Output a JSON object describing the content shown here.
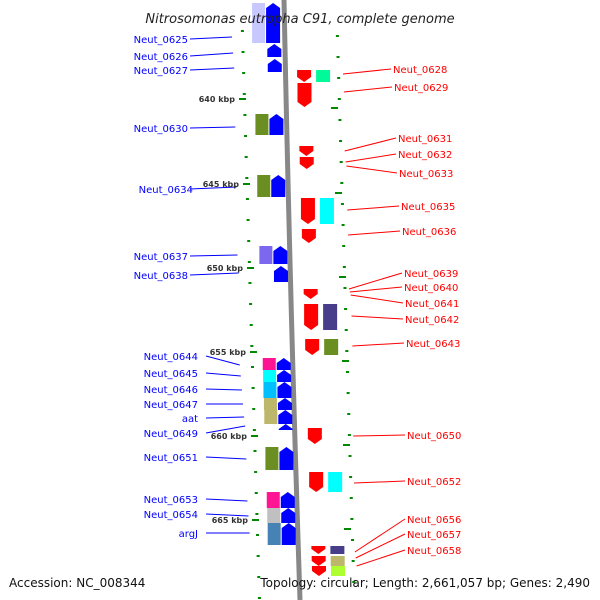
{
  "title": "Nitrosomonas eutropha C91, complete genome",
  "footer": {
    "accession": "Accession: NC_008344",
    "summary": "Topology: circular; Length: 2,661,057 bp; Genes: 2,490"
  },
  "kbp_labels": [
    "640 kbp",
    "645 kbp",
    "650 kbp",
    "655 kbp",
    "660 kbp",
    "665 kbp"
  ],
  "forward_genes": [
    "Neut_0625",
    "Neut_0626",
    "Neut_0627",
    "Neut_0630",
    "Neut_0634",
    "Neut_0637",
    "Neut_0638",
    "Neut_0644",
    "Neut_0645",
    "Neut_0646",
    "Neut_0647",
    "aat",
    "Neut_0649",
    "Neut_0651",
    "Neut_0653",
    "Neut_0654",
    "argJ"
  ],
  "reverse_genes": [
    "Neut_0628",
    "Neut_0629",
    "Neut_0631",
    "Neut_0632",
    "Neut_0633",
    "Neut_0635",
    "Neut_0636",
    "Neut_0639",
    "Neut_0640",
    "Neut_0641",
    "Neut_0642",
    "Neut_0643",
    "Neut_0650",
    "Neut_0652",
    "Neut_0656",
    "Neut_0657",
    "Neut_0658"
  ],
  "colors": {
    "forward": "#0000ff",
    "reverse": "#ff0000",
    "backbone": "#888888",
    "ticks": "#008000"
  }
}
